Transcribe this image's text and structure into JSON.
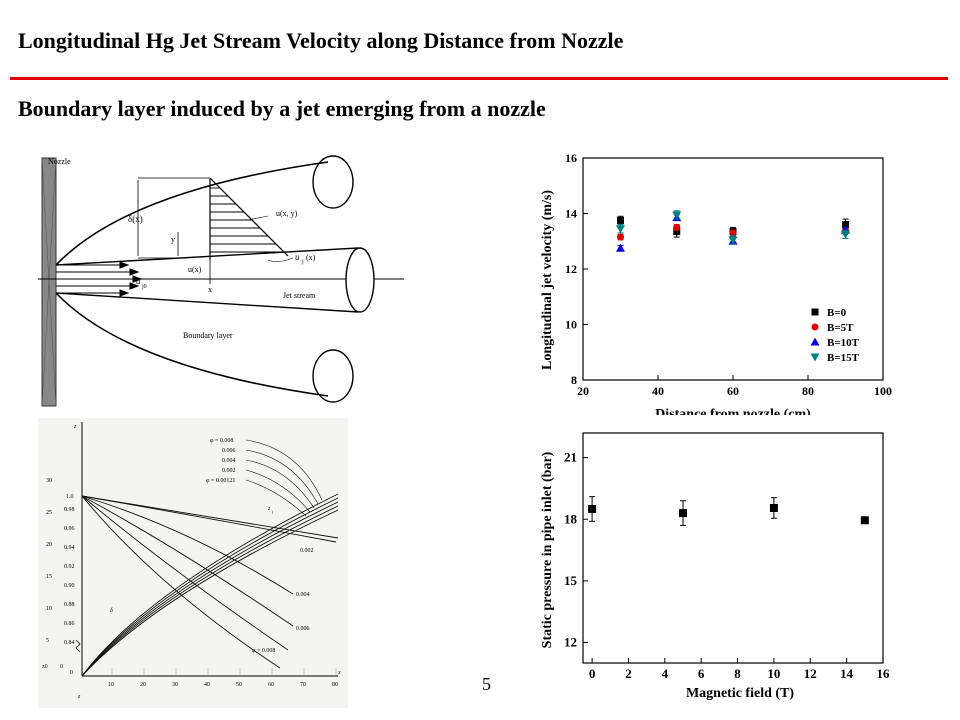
{
  "slide": {
    "title": "Longitudinal Hg Jet Stream Velocity along Distance from Nozzle",
    "subtitle": "Boundary layer induced by a jet emerging from a nozzle",
    "page_number": "5"
  },
  "diagram": {
    "labels": {
      "nozzle": "Nozzle",
      "delta_x": "δ(x)",
      "u_xy": "u(x, y)",
      "y": "y",
      "uj_x": "u",
      "uj_sub": "j",
      "uj_arg": "(x)",
      "u_x": "u(x)",
      "x": "x",
      "u0": "u",
      "u0_sub": "j0",
      "jet_stream": "Jet stream",
      "boundary_layer": "Boundary layer"
    }
  },
  "boundary_plot": {
    "y_ticks": [
      "30",
      "25",
      "20",
      "15",
      "10",
      "5",
      "0"
    ],
    "y_labels": [
      "1.0",
      "0.98",
      "0.96",
      "0.94",
      "0.92",
      "0.90",
      "0.88",
      "0.86",
      "0.84"
    ],
    "x_ticks": [
      "10",
      "20",
      "30",
      "40",
      "50",
      "60",
      "70",
      "80"
    ],
    "phi_labels": [
      "φ = 0.008",
      "0.006",
      "0.004",
      "0.002",
      "φ = 0.00121"
    ],
    "curve_labels": [
      "0.002",
      "0.004",
      "0.006",
      "φ = 0.008"
    ],
    "z_label": "z",
    "zj_label": "z",
    "zj_sub": "j",
    "delta_label": "δ",
    "axis_x": "x",
    "axis_z": "z",
    "zero_label": "z0",
    "zero2": "z",
    "origin": "0"
  },
  "chart_data": [
    {
      "type": "scatter",
      "xlabel": "Distance from nozzle (cm)",
      "ylabel": "Longitudinal jet velocity (m/s)",
      "xlim": [
        20,
        100
      ],
      "ylim": [
        8,
        16
      ],
      "x_ticks": [
        "20",
        "40",
        "60",
        "80",
        "100"
      ],
      "y_ticks": [
        "8",
        "10",
        "12",
        "14",
        "16"
      ],
      "legend_position": "bottom-right",
      "series": [
        {
          "name": "B=0",
          "color": "#000000",
          "marker": "square",
          "x": [
            30,
            45,
            60,
            90
          ],
          "y": [
            13.75,
            13.35,
            13.35,
            13.6
          ],
          "err": [
            0.15,
            0.2,
            0.15,
            0.2
          ]
        },
        {
          "name": "B=5T",
          "color": "#e00000",
          "marker": "circle",
          "x": [
            30,
            45,
            60,
            90
          ],
          "y": [
            13.15,
            13.5,
            13.3,
            13.4
          ],
          "err": [
            0.1,
            0.1,
            0.1,
            0.1
          ]
        },
        {
          "name": "B=10T",
          "color": "#0000e0",
          "marker": "triangle-up",
          "x": [
            30,
            45,
            60,
            90
          ],
          "y": [
            12.75,
            13.85,
            13.0,
            13.4
          ],
          "err": [
            0.1,
            0.1,
            0.1,
            0.1
          ]
        },
        {
          "name": "B=15T",
          "color": "#008080",
          "marker": "triangle-down",
          "x": [
            30,
            45,
            60,
            90
          ],
          "y": [
            13.45,
            13.95,
            13.05,
            13.25
          ],
          "err": [
            0.15,
            0.15,
            0.15,
            0.15
          ]
        }
      ]
    },
    {
      "type": "scatter",
      "xlabel": "Magnetic field (T)",
      "ylabel": "Static pressure in pipe inlet (bar)",
      "xlim": [
        -0.5,
        16
      ],
      "ylim": [
        11,
        22.2
      ],
      "x_ticks": [
        "0",
        "2",
        "4",
        "6",
        "8",
        "10",
        "12",
        "14",
        "16"
      ],
      "y_ticks": [
        "12",
        "15",
        "18",
        "21"
      ],
      "series": [
        {
          "color": "#000000",
          "marker": "square",
          "x": [
            0,
            5,
            10,
            15
          ],
          "y": [
            18.5,
            18.3,
            18.55,
            17.95
          ],
          "err": [
            0.6,
            0.6,
            0.5,
            0
          ]
        }
      ]
    }
  ]
}
